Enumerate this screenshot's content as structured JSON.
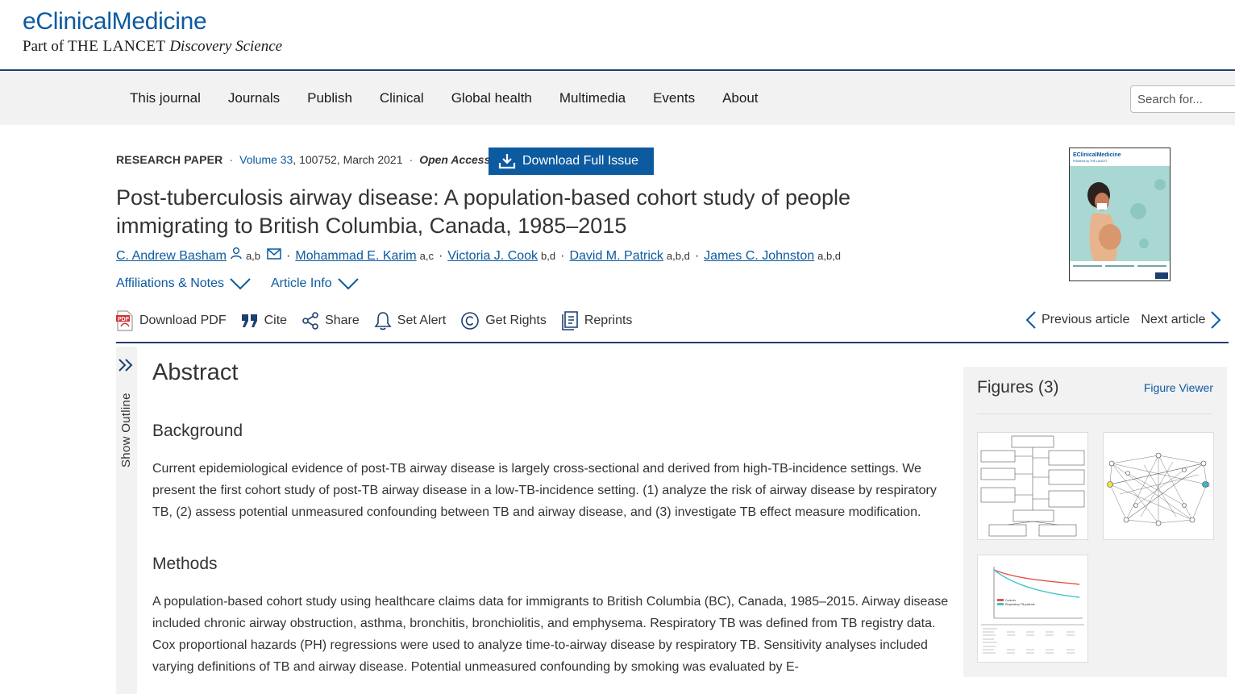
{
  "header": {
    "brand_name": "eClinicalMedicine",
    "brand_sub_prefix": "Part of",
    "brand_sub_lancet": "THE LANCET",
    "brand_sub_suffix": "Discovery Science"
  },
  "nav": {
    "items": [
      "This journal",
      "Journals",
      "Publish",
      "Clinical",
      "Global health",
      "Multimedia",
      "Events",
      "About"
    ],
    "search_placeholder": "Search for..."
  },
  "article": {
    "type": "RESEARCH PAPER",
    "volume": "Volume 33",
    "issue_info": ", 100752, March 2021",
    "access": "Open Access",
    "download_issue": "Download Full Issue",
    "title": "Post-tuberculosis airway disease: A population-based cohort study of people immigrating to British Columbia, Canada, 1985–2015",
    "authors": [
      {
        "name": "C. Andrew Basham",
        "sup": "a,b"
      },
      {
        "name": "Mohammad E. Karim",
        "sup": "a,c"
      },
      {
        "name": "Victoria J. Cook",
        "sup": "b,d"
      },
      {
        "name": "David M. Patrick",
        "sup": "a,b,d"
      },
      {
        "name": "James C. Johnston",
        "sup": "a,b,d"
      }
    ],
    "affiliations_toggle": "Affiliations & Notes",
    "article_info_toggle": "Article Info"
  },
  "cover": {
    "journal": "EClinicalMedicine",
    "publisher": "Published by THE LANCET"
  },
  "toolbar": {
    "download_pdf": "Download PDF",
    "cite": "Cite",
    "share": "Share",
    "set_alert": "Set Alert",
    "get_rights": "Get Rights",
    "reprints": "Reprints",
    "previous": "Previous article",
    "next": "Next article"
  },
  "outline": {
    "label": "Show Outline"
  },
  "abstract": {
    "title": "Abstract",
    "background_title": "Background",
    "background_text": "Current epidemiological evidence of post-TB airway disease is largely cross-sectional and derived from high-TB-incidence settings. We present the first cohort study of post-TB airway disease in a low-TB-incidence setting. (1) analyze the risk of airway disease by respiratory TB, (2) assess potential unmeasured confounding between TB and airway disease, and (3) investigate TB effect measure modification.",
    "methods_title": "Methods",
    "methods_text": "A population-based cohort study using healthcare claims data for immigrants to British Columbia (BC), Canada, 1985–2015. Airway disease included chronic airway obstruction, asthma, bronchitis, bronchiolitis, and emphysema. Respiratory TB was defined from TB registry data. Cox proportional hazards (PH) regressions were used to analyze time-to-airway disease by respiratory TB. Sensitivity analyses included varying definitions of TB and airway disease. Potential unmeasured confounding by smoking was evaluated by E-"
  },
  "figures": {
    "title": "Figures (3)",
    "viewer": "Figure Viewer",
    "legend_controls": "Controls",
    "legend_tb": "Respiratory TB patients"
  },
  "colors": {
    "brand_blue": "#0c5aa0",
    "header_rule": "#1d3f70",
    "nav_bg": "#f2f2f2"
  }
}
